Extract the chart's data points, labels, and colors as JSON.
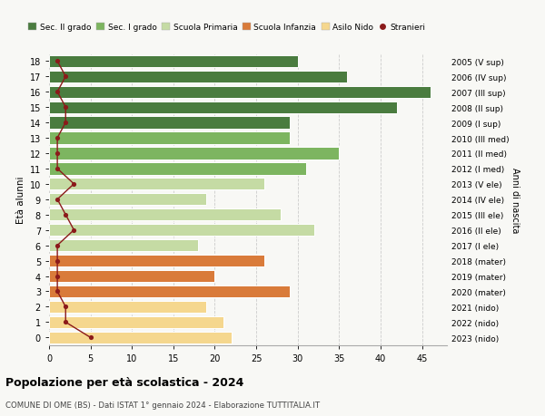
{
  "ages": [
    0,
    1,
    2,
    3,
    4,
    5,
    6,
    7,
    8,
    9,
    10,
    11,
    12,
    13,
    14,
    15,
    16,
    17,
    18
  ],
  "values": [
    22,
    21,
    19,
    29,
    20,
    26,
    18,
    32,
    28,
    19,
    26,
    31,
    35,
    29,
    29,
    42,
    46,
    36,
    30
  ],
  "stranieri": [
    5,
    2,
    2,
    1,
    1,
    1,
    1,
    3,
    2,
    1,
    3,
    1,
    1,
    1,
    2,
    2,
    1,
    2,
    1
  ],
  "right_labels": [
    "2023 (nido)",
    "2022 (nido)",
    "2021 (nido)",
    "2020 (mater)",
    "2019 (mater)",
    "2018 (mater)",
    "2017 (I ele)",
    "2016 (II ele)",
    "2015 (III ele)",
    "2014 (IV ele)",
    "2013 (V ele)",
    "2012 (I med)",
    "2011 (II med)",
    "2010 (III med)",
    "2009 (I sup)",
    "2008 (II sup)",
    "2007 (III sup)",
    "2006 (IV sup)",
    "2005 (V sup)"
  ],
  "colors": {
    "sec2": "#4a7c3f",
    "sec1": "#7db560",
    "primaria": "#c5dba4",
    "infanzia": "#d97b3a",
    "nido": "#f5d78e",
    "stranieri": "#8b1a1a"
  },
  "bar_colors": [
    "nido",
    "nido",
    "nido",
    "infanzia",
    "infanzia",
    "infanzia",
    "primaria",
    "primaria",
    "primaria",
    "primaria",
    "primaria",
    "sec1",
    "sec1",
    "sec1",
    "sec2",
    "sec2",
    "sec2",
    "sec2",
    "sec2"
  ],
  "legend_labels": [
    "Sec. II grado",
    "Sec. I grado",
    "Scuola Primaria",
    "Scuola Infanzia",
    "Asilo Nido",
    "Stranieri"
  ],
  "legend_colors": [
    "#4a7c3f",
    "#7db560",
    "#c5dba4",
    "#d97b3a",
    "#f5d78e",
    "#8b1a1a"
  ],
  "title": "Popolazione per età scolastica - 2024",
  "subtitle": "COMUNE DI OME (BS) - Dati ISTAT 1° gennaio 2024 - Elaborazione TUTTITALIA.IT",
  "ylabel_left": "Età alunni",
  "ylabel_right": "Anni di nascita",
  "xlim": [
    0,
    48
  ],
  "xticks": [
    0,
    5,
    10,
    15,
    20,
    25,
    30,
    35,
    40,
    45
  ],
  "background": "#f8f8f5"
}
